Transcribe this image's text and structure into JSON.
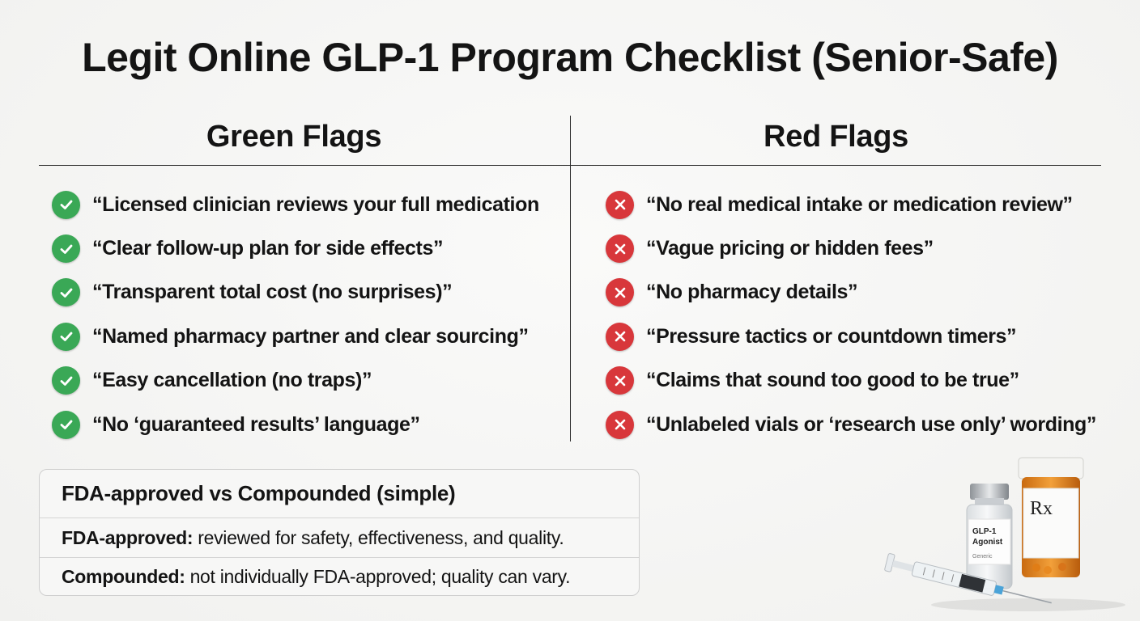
{
  "title": "Legit Online GLP-1 Program Checklist (Senior-Safe)",
  "green": {
    "heading": "Green Flags",
    "items": [
      "“Licensed clinician reviews your full medication",
      "“Clear follow-up plan for side effects”",
      "“Transparent total cost (no surprises)”",
      "“Named pharmacy partner and clear sourcing”",
      "“Easy cancellation (no traps)”",
      "“No ‘guaranteed results’ language”"
    ],
    "icon": "check-circle-icon",
    "color": "#3aa856"
  },
  "red": {
    "heading": "Red Flags",
    "items": [
      "“No real medical intake or medication review”",
      "“Vague pricing or hidden fees”",
      "“No pharmacy details”",
      "“Pressure tactics or countdown timers”",
      "“Claims that sound too good to be true”",
      "“Unlabeled vials or ‘research use only’ wording”"
    ],
    "icon": "x-circle-icon",
    "color": "#d8373b"
  },
  "info_card": {
    "title": "FDA-approved vs Compounded (simple)",
    "rows": [
      {
        "term": "FDA-approved:",
        "desc": "reviewed for safety, effectiveness, and quality."
      },
      {
        "term": "Compounded:",
        "desc": "not individually FDA-approved; quality can vary."
      }
    ]
  },
  "illustration": {
    "vial_label_line1": "GLP-1",
    "vial_label_line2": "Agonist",
    "vial_label_small": "Generic",
    "bottle_label": "Rx"
  }
}
